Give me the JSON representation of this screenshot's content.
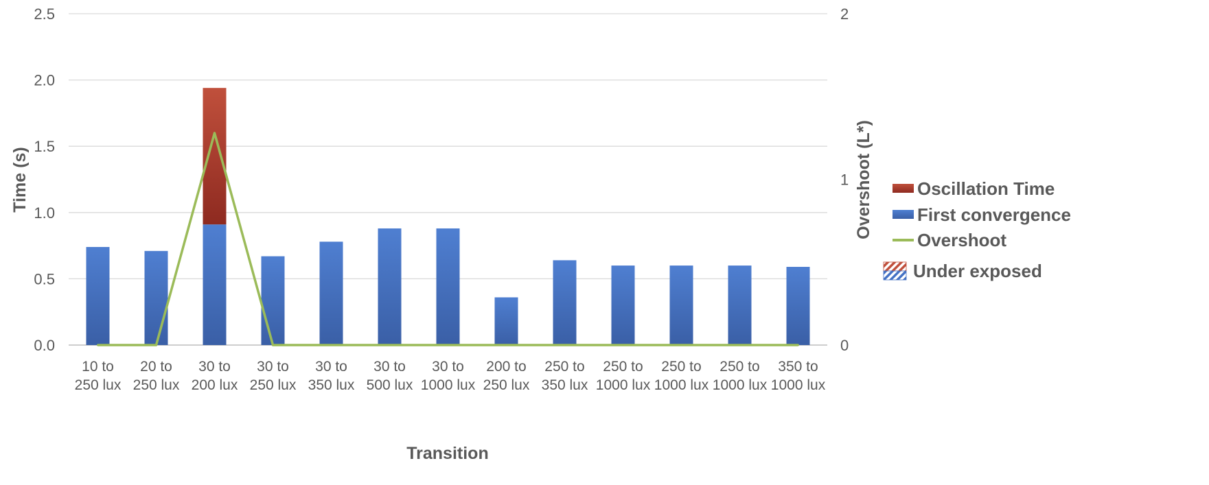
{
  "chart_data": {
    "type": "bar",
    "stacked": true,
    "categories": [
      [
        "10 to",
        "250 lux"
      ],
      [
        "20 to",
        "250 lux"
      ],
      [
        "30 to",
        "200 lux"
      ],
      [
        "30 to",
        "250 lux"
      ],
      [
        "30 to",
        "350 lux"
      ],
      [
        "30 to",
        "500 lux"
      ],
      [
        "30 to",
        "1000 lux"
      ],
      [
        "200 to",
        "250 lux"
      ],
      [
        "250 to",
        "350 lux"
      ],
      [
        "250 to",
        "1000 lux"
      ],
      [
        "250 to",
        "1000 lux"
      ],
      [
        "250 to",
        "1000 lux"
      ],
      [
        "350 to",
        "1000 lux"
      ]
    ],
    "series": [
      {
        "name": "First convergence",
        "kind": "bar",
        "axis": "left",
        "color": "#4472c4",
        "values": [
          0.74,
          0.71,
          0.91,
          0.67,
          0.78,
          0.88,
          0.88,
          0.36,
          0.64,
          0.6,
          0.6,
          0.6,
          0.59
        ]
      },
      {
        "name": "Oscillation Time",
        "kind": "bar",
        "axis": "left",
        "color": "#b23b2b",
        "values": [
          0,
          0,
          1.03,
          0,
          0,
          0,
          0,
          0,
          0,
          0,
          0,
          0,
          0
        ]
      },
      {
        "name": "Overshoot",
        "kind": "line",
        "axis": "right",
        "color": "#9bbb59",
        "values": [
          0,
          0,
          1.28,
          0,
          0,
          0,
          0,
          0,
          0,
          0,
          0,
          0,
          0
        ]
      }
    ],
    "y_left": {
      "label": "Time (s)",
      "range": [
        0,
        2.5
      ],
      "ticks": [
        "0.0",
        "0.5",
        "1.0",
        "1.5",
        "2.0",
        "2.5"
      ]
    },
    "y_right": {
      "label": "Overshoot (L*)",
      "range": [
        0,
        2
      ],
      "ticks": [
        "0",
        "1",
        "2"
      ]
    },
    "xlabel": "Transition",
    "grid": true,
    "legend": {
      "position": "right",
      "items": [
        {
          "label": "Oscillation Time",
          "symbol": "bar",
          "color": "#b23b2b"
        },
        {
          "label": "First convergence",
          "symbol": "bar",
          "color": "#4472c4"
        },
        {
          "label": "Overshoot",
          "symbol": "line",
          "color": "#9bbb59"
        },
        {
          "label": "Under exposed",
          "symbol": "hatch",
          "color": "#4472c4"
        }
      ]
    }
  }
}
